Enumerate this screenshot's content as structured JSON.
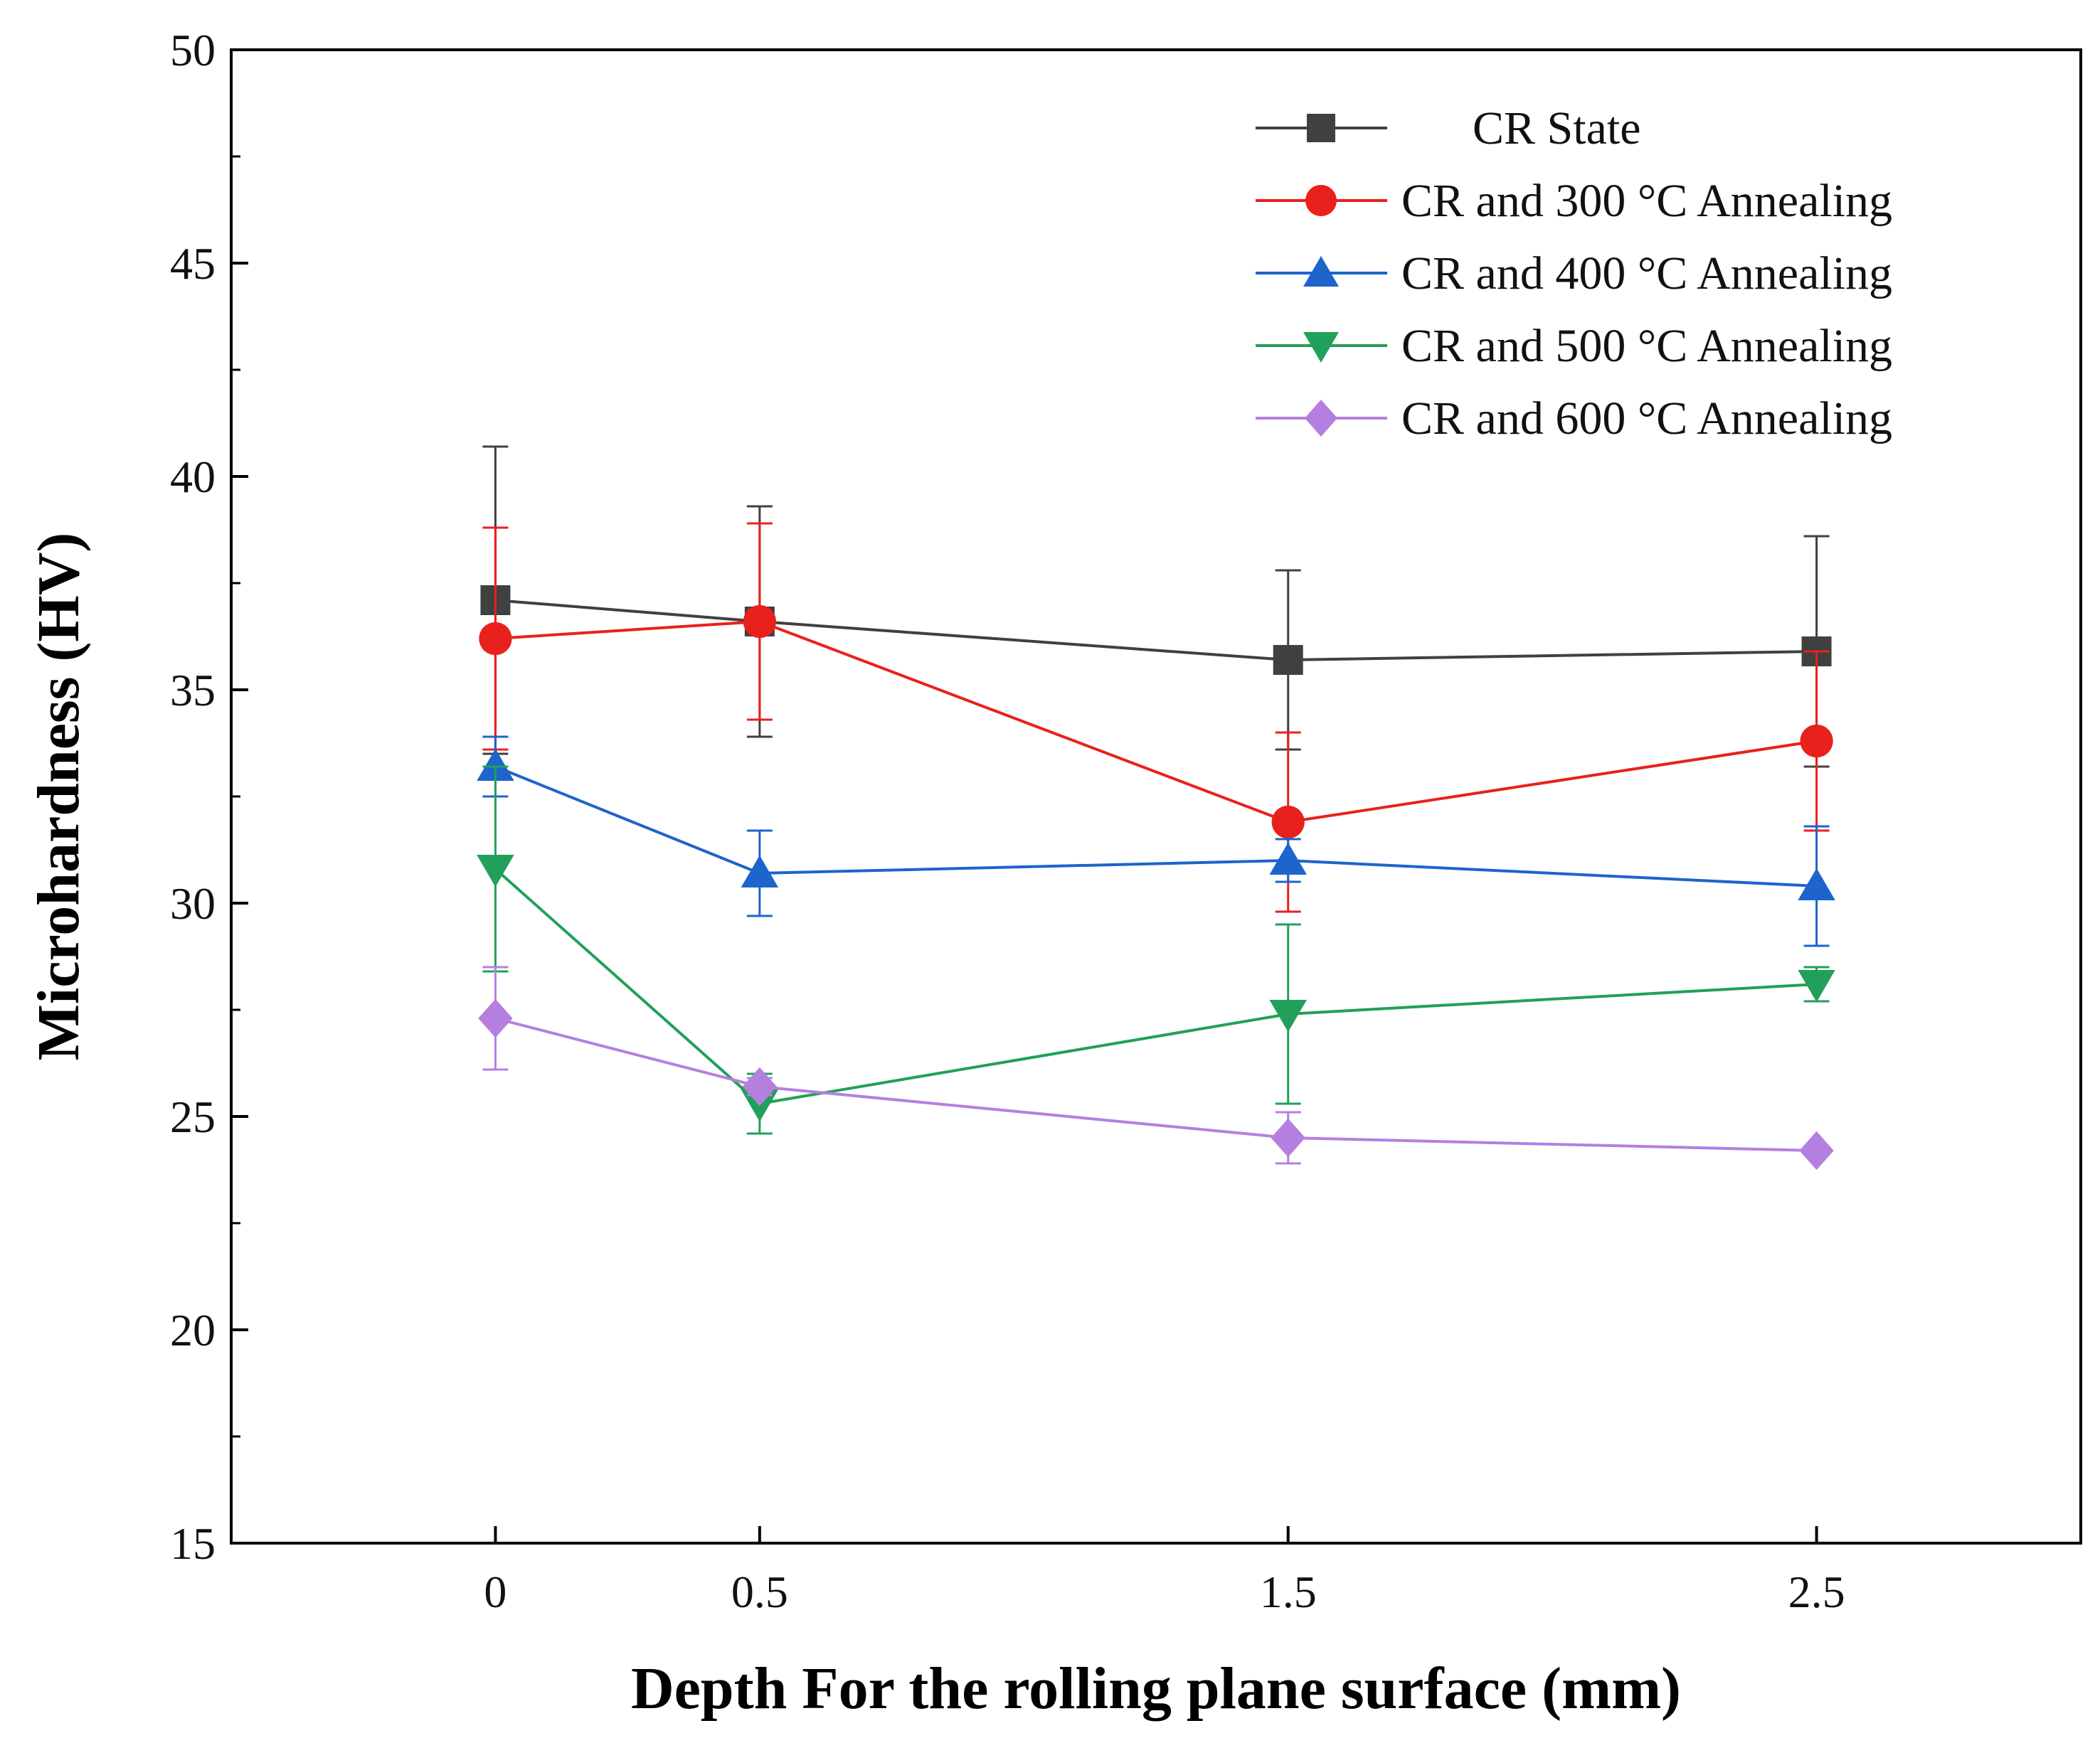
{
  "chart_data": {
    "type": "line",
    "title": "",
    "xlabel": "Depth For the rolling plane surface (mm)",
    "ylabel": "Microhardness (HV)",
    "x": [
      0,
      0.5,
      1.5,
      2.5
    ],
    "xticks": [
      "0",
      "0.5",
      "1.5",
      "2.5"
    ],
    "xlim": [
      -0.5,
      3.0
    ],
    "ylim": [
      15,
      50
    ],
    "yticks": [
      15,
      20,
      25,
      30,
      35,
      40,
      45,
      50
    ],
    "yticklabels": [
      "15",
      "20",
      "25",
      "30",
      "35",
      "40",
      "45",
      "50"
    ],
    "grid": false,
    "legend_position": "top-right",
    "series": [
      {
        "name": "CR State",
        "color": "#404040",
        "marker": "square",
        "values": [
          37.1,
          36.6,
          35.7,
          35.9
        ],
        "errors": [
          3.6,
          2.7,
          2.1,
          2.7
        ]
      },
      {
        "name": "CR and 300 °C Annealing",
        "color": "#e8211d",
        "marker": "circle",
        "values": [
          36.2,
          36.6,
          31.9,
          33.8
        ],
        "errors": [
          2.6,
          2.3,
          2.1,
          2.1
        ]
      },
      {
        "name": "CR and 400 °C Annealing",
        "color": "#1d64cc",
        "marker": "triangle-up",
        "values": [
          33.2,
          30.7,
          31.0,
          30.4
        ],
        "errors": [
          0.7,
          1.0,
          0.5,
          1.4
        ]
      },
      {
        "name": "CR and 500 °C Annealing",
        "color": "#21a05a",
        "marker": "triangle-down",
        "values": [
          30.8,
          25.3,
          27.4,
          28.1
        ],
        "errors": [
          2.4,
          0.7,
          2.1,
          0.4
        ]
      },
      {
        "name": "CR and 600 °C Annealing",
        "color": "#b57fe0",
        "marker": "diamond",
        "values": [
          27.3,
          25.7,
          24.5,
          24.2
        ],
        "errors": [
          1.2,
          0.2,
          0.6,
          0.1
        ]
      }
    ]
  }
}
